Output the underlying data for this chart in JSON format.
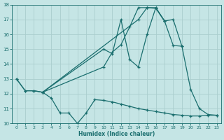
{
  "xlabel": "Humidex (Indice chaleur)",
  "xlim_min": -0.5,
  "xlim_max": 23.5,
  "ylim_min": 10,
  "ylim_max": 18,
  "yticks": [
    10,
    11,
    12,
    13,
    14,
    15,
    16,
    17,
    18
  ],
  "xticks": [
    0,
    1,
    2,
    3,
    4,
    5,
    6,
    7,
    8,
    9,
    10,
    11,
    12,
    13,
    14,
    15,
    16,
    17,
    18,
    19,
    20,
    21,
    22,
    23
  ],
  "bg_color": "#c5e5e5",
  "line_color": "#1a6e6e",
  "grid_color": "#aacece",
  "lines": [
    {
      "x": [
        0,
        1,
        2,
        3,
        14,
        15,
        16,
        17,
        18,
        19,
        20,
        21,
        22,
        23
      ],
      "y": [
        13,
        12.2,
        12.2,
        12.1,
        17.0,
        17.8,
        17.8,
        16.9,
        17.0,
        15.2,
        12.3,
        11.0,
        10.6,
        10.55
      ]
    },
    {
      "x": [
        0,
        1,
        2,
        3,
        10,
        11,
        12,
        13,
        14,
        15,
        16,
        17
      ],
      "y": [
        13,
        12.2,
        12.2,
        12.1,
        15.0,
        14.7,
        17.0,
        14.3,
        13.8,
        16.0,
        17.8,
        16.9
      ]
    },
    {
      "x": [
        3,
        10,
        11,
        12,
        13,
        14,
        15,
        16,
        17,
        18,
        19
      ],
      "y": [
        12.1,
        13.8,
        14.8,
        15.3,
        16.5,
        17.8,
        17.8,
        17.75,
        16.9,
        15.25,
        15.2
      ]
    },
    {
      "x": [
        3,
        4,
        5,
        6,
        7,
        8,
        9,
        10,
        11,
        12,
        13,
        14,
        15,
        16,
        17,
        18,
        19,
        20,
        21,
        22,
        23
      ],
      "y": [
        12.1,
        11.7,
        10.7,
        10.7,
        10.0,
        10.7,
        11.6,
        11.55,
        11.45,
        11.3,
        11.15,
        11.0,
        10.9,
        10.8,
        10.7,
        10.6,
        10.55,
        10.5,
        10.5,
        10.55,
        10.55
      ]
    }
  ]
}
